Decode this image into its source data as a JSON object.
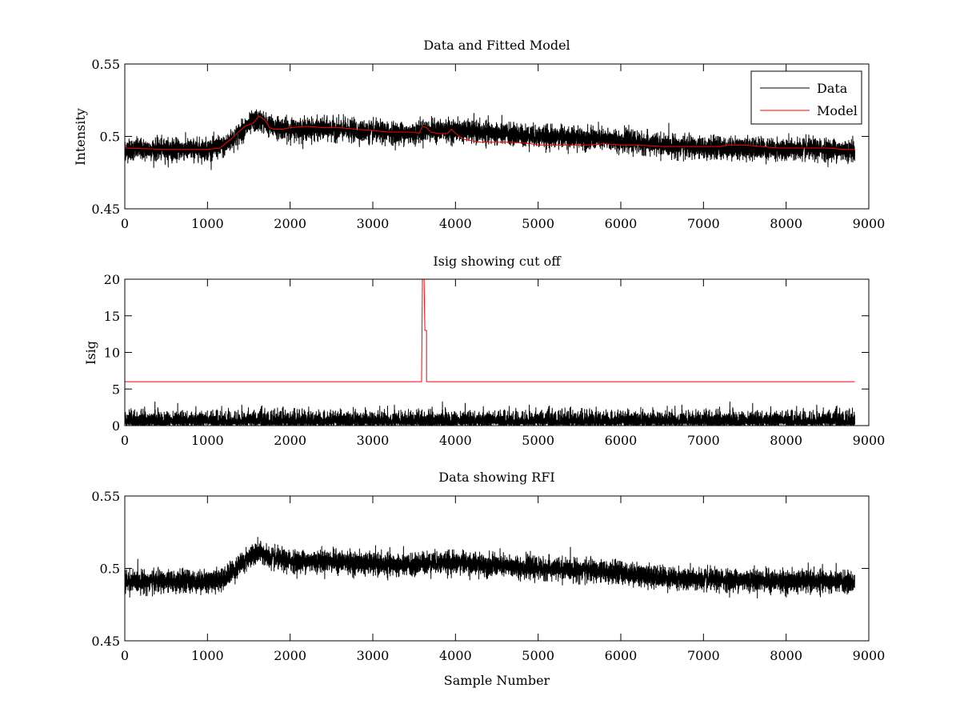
{
  "chart_data": [
    {
      "type": "line",
      "title": "Data and Fitted Model",
      "xlabel": "",
      "ylabel": "Intensity",
      "xlim": [
        0,
        9000
      ],
      "ylim": [
        0.45,
        0.55
      ],
      "xticks": [
        0,
        1000,
        2000,
        3000,
        4000,
        5000,
        6000,
        7000,
        8000,
        9000
      ],
      "xtick_labels": [
        "0",
        "1000",
        "2000",
        "3000",
        "4000",
        "5000",
        "6000",
        "7000",
        "8000",
        "9000"
      ],
      "yticks": [
        0.45,
        0.5,
        0.55
      ],
      "ytick_labels": [
        "0.45",
        "0.5",
        "0.55"
      ],
      "grid": false,
      "legend_position": "top-right",
      "series": [
        {
          "name": "Data",
          "color": "#000000",
          "noisy": true,
          "n_samples": 8830,
          "noise_half_range": 0.008,
          "x": [
            0,
            500,
            1000,
            1200,
            1400,
            1550,
            1650,
            1750,
            2000,
            2500,
            3000,
            3500,
            3600,
            4000,
            4500,
            5000,
            5500,
            6000,
            6500,
            7000,
            7500,
            8000,
            8500,
            8830
          ],
          "y": [
            0.491,
            0.491,
            0.491,
            0.493,
            0.503,
            0.51,
            0.511,
            0.507,
            0.505,
            0.505,
            0.503,
            0.502,
            0.504,
            0.504,
            0.502,
            0.5,
            0.499,
            0.497,
            0.494,
            0.492,
            0.492,
            0.491,
            0.491,
            0.49
          ]
        },
        {
          "name": "Model",
          "color": "#ff0000",
          "noisy": false,
          "x": [
            0,
            500,
            1000,
            1150,
            1300,
            1450,
            1550,
            1620,
            1650,
            1700,
            1750,
            1800,
            1900,
            2000,
            2200,
            2400,
            2600,
            2800,
            3000,
            3200,
            3400,
            3500,
            3560,
            3600,
            3650,
            3700,
            3800,
            3900,
            3950,
            4000,
            4100,
            4300,
            4500,
            4700,
            4900,
            5000,
            5200,
            5400,
            5600,
            5800,
            6000,
            6200,
            6500,
            6800,
            7000,
            7200,
            7300,
            7400,
            7500,
            7700,
            7900,
            8100,
            8300,
            8500,
            8700,
            8830
          ],
          "y": [
            0.492,
            0.491,
            0.491,
            0.492,
            0.499,
            0.507,
            0.509,
            0.514,
            0.513,
            0.511,
            0.506,
            0.505,
            0.505,
            0.506,
            0.507,
            0.506,
            0.506,
            0.505,
            0.504,
            0.503,
            0.503,
            0.503,
            0.502,
            0.507,
            0.506,
            0.503,
            0.502,
            0.502,
            0.505,
            0.502,
            0.498,
            0.496,
            0.496,
            0.496,
            0.495,
            0.494,
            0.494,
            0.494,
            0.494,
            0.495,
            0.494,
            0.494,
            0.493,
            0.493,
            0.493,
            0.493,
            0.494,
            0.494,
            0.494,
            0.493,
            0.492,
            0.492,
            0.492,
            0.492,
            0.491,
            0.491
          ]
        }
      ]
    },
    {
      "type": "line",
      "title": "Isig showing cut off",
      "xlabel": "",
      "ylabel": "Isig",
      "xlim": [
        0,
        9000
      ],
      "ylim": [
        0,
        20
      ],
      "xticks": [
        0,
        1000,
        2000,
        3000,
        4000,
        5000,
        6000,
        7000,
        8000,
        9000
      ],
      "xtick_labels": [
        "0",
        "1000",
        "2000",
        "3000",
        "4000",
        "5000",
        "6000",
        "7000",
        "8000",
        "9000"
      ],
      "yticks": [
        0,
        5,
        10,
        15,
        20
      ],
      "ytick_labels": [
        "0",
        "5",
        "10",
        "15",
        "20"
      ],
      "grid": false,
      "series": [
        {
          "color": "#000000",
          "noisy": true,
          "kind": "abs-noise",
          "n_samples": 8830,
          "noise_scale": 1.0,
          "x": [
            0,
            8830
          ],
          "y": [
            0,
            0
          ]
        },
        {
          "color": "#ff0000",
          "noisy": false,
          "x": [
            0,
            3590,
            3600,
            3620,
            3630,
            3650,
            3650,
            8830
          ],
          "y": [
            6,
            6,
            20,
            20,
            13,
            13,
            6,
            6
          ]
        }
      ]
    },
    {
      "type": "line",
      "title": "Data showing RFI",
      "xlabel": "Sample Number",
      "ylabel": "",
      "xlim": [
        0,
        9000
      ],
      "ylim": [
        0.45,
        0.55
      ],
      "xticks": [
        0,
        1000,
        2000,
        3000,
        4000,
        5000,
        6000,
        7000,
        8000,
        9000
      ],
      "xtick_labels": [
        "0",
        "1000",
        "2000",
        "3000",
        "4000",
        "5000",
        "6000",
        "7000",
        "8000",
        "9000"
      ],
      "yticks": [
        0.45,
        0.5,
        0.55
      ],
      "ytick_labels": [
        "0.45",
        "0.5",
        "0.55"
      ],
      "grid": false,
      "series": [
        {
          "color": "#000000",
          "noisy": true,
          "n_samples": 8830,
          "noise_half_range": 0.008,
          "x": [
            0,
            500,
            1000,
            1200,
            1400,
            1550,
            1650,
            1750,
            2000,
            2500,
            3000,
            3500,
            3600,
            4000,
            4500,
            5000,
            5500,
            6000,
            6500,
            7000,
            7500,
            8000,
            8500,
            8830
          ],
          "y": [
            0.491,
            0.491,
            0.491,
            0.493,
            0.503,
            0.51,
            0.511,
            0.507,
            0.505,
            0.505,
            0.503,
            0.502,
            0.504,
            0.504,
            0.502,
            0.5,
            0.499,
            0.497,
            0.494,
            0.492,
            0.492,
            0.491,
            0.491,
            0.49
          ]
        }
      ]
    }
  ]
}
